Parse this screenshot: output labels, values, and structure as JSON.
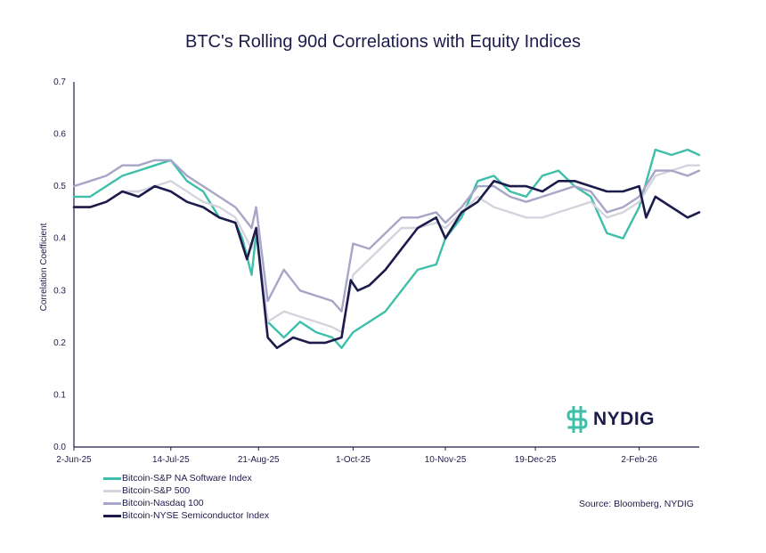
{
  "colors": {
    "software": "#3dbfaa",
    "sp500": "#d4d4df",
    "nasdaq": "#a7a5c8",
    "semis": "#1d1b4c",
    "axis": "#1d1b4c",
    "logo_accent": "#3dbfaa"
  },
  "logo": {
    "text": "NYDIG",
    "icon": "dollar-sign-logo-icon"
  },
  "source": "Source: Bloomberg, NYDIG",
  "chart_data": {
    "type": "line",
    "title": "BTC's Rolling 90d Correlations with Equity Indices",
    "ylabel": "Correlation Coefficient",
    "xlabel": "",
    "ylim": [
      0,
      0.7
    ],
    "yticks": [
      "0.0",
      "0.1",
      "0.2",
      "0.3",
      "0.4",
      "0.5",
      "0.6",
      "0.7"
    ],
    "x_range": [
      "2025-06-02",
      "2026-02-28"
    ],
    "xtick_labels": [
      "2-Jun-25",
      "14-Jul-25",
      "21-Aug-25",
      "1-Oct-25",
      "10-Nov-25",
      "19-Dec-25",
      "2-Feb-26"
    ],
    "xtick_dates": [
      "2025-06-02",
      "2025-07-14",
      "2025-08-21",
      "2025-10-01",
      "2025-11-10",
      "2025-12-19",
      "2026-02-02"
    ],
    "grid": false,
    "legend_position": "bottom-left",
    "series": [
      {
        "name": "Bitcoin-S&P NA Software Index",
        "color_key": "software",
        "points": [
          [
            "2025-06-02",
            0.48
          ],
          [
            "2025-06-09",
            0.48
          ],
          [
            "2025-06-16",
            0.5
          ],
          [
            "2025-06-23",
            0.52
          ],
          [
            "2025-06-30",
            0.53
          ],
          [
            "2025-07-07",
            0.54
          ],
          [
            "2025-07-14",
            0.55
          ],
          [
            "2025-07-21",
            0.51
          ],
          [
            "2025-07-28",
            0.49
          ],
          [
            "2025-08-04",
            0.44
          ],
          [
            "2025-08-11",
            0.43
          ],
          [
            "2025-08-14",
            0.4
          ],
          [
            "2025-08-18",
            0.33
          ],
          [
            "2025-08-20",
            0.41
          ],
          [
            "2025-08-25",
            0.24
          ],
          [
            "2025-09-01",
            0.21
          ],
          [
            "2025-09-08",
            0.24
          ],
          [
            "2025-09-15",
            0.22
          ],
          [
            "2025-09-22",
            0.21
          ],
          [
            "2025-09-26",
            0.19
          ],
          [
            "2025-10-01",
            0.22
          ],
          [
            "2025-10-08",
            0.24
          ],
          [
            "2025-10-15",
            0.26
          ],
          [
            "2025-10-22",
            0.3
          ],
          [
            "2025-10-29",
            0.34
          ],
          [
            "2025-11-06",
            0.35
          ],
          [
            "2025-11-10",
            0.4
          ],
          [
            "2025-11-17",
            0.44
          ],
          [
            "2025-11-24",
            0.51
          ],
          [
            "2025-12-01",
            0.52
          ],
          [
            "2025-12-08",
            0.49
          ],
          [
            "2025-12-15",
            0.48
          ],
          [
            "2025-12-22",
            0.52
          ],
          [
            "2025-12-29",
            0.53
          ],
          [
            "2026-01-05",
            0.5
          ],
          [
            "2026-01-12",
            0.48
          ],
          [
            "2026-01-19",
            0.41
          ],
          [
            "2026-01-26",
            0.4
          ],
          [
            "2026-02-02",
            0.46
          ],
          [
            "2026-02-09",
            0.57
          ],
          [
            "2026-02-16",
            0.56
          ],
          [
            "2026-02-23",
            0.57
          ],
          [
            "2026-02-28",
            0.56
          ]
        ]
      },
      {
        "name": "Bitcoin-S&P 500",
        "color_key": "sp500",
        "points": [
          [
            "2025-06-02",
            0.46
          ],
          [
            "2025-06-09",
            0.46
          ],
          [
            "2025-06-16",
            0.47
          ],
          [
            "2025-06-23",
            0.49
          ],
          [
            "2025-06-30",
            0.49
          ],
          [
            "2025-07-07",
            0.5
          ],
          [
            "2025-07-14",
            0.51
          ],
          [
            "2025-07-21",
            0.49
          ],
          [
            "2025-07-28",
            0.47
          ],
          [
            "2025-08-04",
            0.46
          ],
          [
            "2025-08-11",
            0.44
          ],
          [
            "2025-08-18",
            0.38
          ],
          [
            "2025-08-20",
            0.42
          ],
          [
            "2025-08-25",
            0.24
          ],
          [
            "2025-09-01",
            0.26
          ],
          [
            "2025-09-08",
            0.25
          ],
          [
            "2025-09-15",
            0.24
          ],
          [
            "2025-09-22",
            0.23
          ],
          [
            "2025-09-26",
            0.22
          ],
          [
            "2025-10-01",
            0.33
          ],
          [
            "2025-10-08",
            0.36
          ],
          [
            "2025-10-15",
            0.39
          ],
          [
            "2025-10-22",
            0.42
          ],
          [
            "2025-10-29",
            0.42
          ],
          [
            "2025-11-06",
            0.43
          ],
          [
            "2025-11-10",
            0.42
          ],
          [
            "2025-11-17",
            0.45
          ],
          [
            "2025-11-24",
            0.48
          ],
          [
            "2025-12-01",
            0.46
          ],
          [
            "2025-12-08",
            0.45
          ],
          [
            "2025-12-15",
            0.44
          ],
          [
            "2025-12-22",
            0.44
          ],
          [
            "2025-12-29",
            0.45
          ],
          [
            "2026-01-05",
            0.46
          ],
          [
            "2026-01-12",
            0.47
          ],
          [
            "2026-01-19",
            0.44
          ],
          [
            "2026-01-26",
            0.45
          ],
          [
            "2026-02-02",
            0.47
          ],
          [
            "2026-02-09",
            0.52
          ],
          [
            "2026-02-16",
            0.53
          ],
          [
            "2026-02-23",
            0.54
          ],
          [
            "2026-02-28",
            0.54
          ]
        ]
      },
      {
        "name": "Bitcoin-Nasdaq 100",
        "color_key": "nasdaq",
        "points": [
          [
            "2025-06-02",
            0.5
          ],
          [
            "2025-06-09",
            0.51
          ],
          [
            "2025-06-16",
            0.52
          ],
          [
            "2025-06-23",
            0.54
          ],
          [
            "2025-06-30",
            0.54
          ],
          [
            "2025-07-07",
            0.55
          ],
          [
            "2025-07-14",
            0.55
          ],
          [
            "2025-07-21",
            0.52
          ],
          [
            "2025-07-28",
            0.5
          ],
          [
            "2025-08-04",
            0.48
          ],
          [
            "2025-08-11",
            0.46
          ],
          [
            "2025-08-18",
            0.42
          ],
          [
            "2025-08-20",
            0.46
          ],
          [
            "2025-08-25",
            0.28
          ],
          [
            "2025-09-01",
            0.34
          ],
          [
            "2025-09-08",
            0.3
          ],
          [
            "2025-09-15",
            0.29
          ],
          [
            "2025-09-22",
            0.28
          ],
          [
            "2025-09-26",
            0.26
          ],
          [
            "2025-10-01",
            0.39
          ],
          [
            "2025-10-08",
            0.38
          ],
          [
            "2025-10-15",
            0.41
          ],
          [
            "2025-10-22",
            0.44
          ],
          [
            "2025-10-29",
            0.44
          ],
          [
            "2025-11-06",
            0.45
          ],
          [
            "2025-11-10",
            0.43
          ],
          [
            "2025-11-17",
            0.46
          ],
          [
            "2025-11-24",
            0.5
          ],
          [
            "2025-12-01",
            0.5
          ],
          [
            "2025-12-08",
            0.48
          ],
          [
            "2025-12-15",
            0.47
          ],
          [
            "2025-12-22",
            0.48
          ],
          [
            "2025-12-29",
            0.49
          ],
          [
            "2026-01-05",
            0.5
          ],
          [
            "2026-01-12",
            0.49
          ],
          [
            "2026-01-19",
            0.45
          ],
          [
            "2026-01-26",
            0.46
          ],
          [
            "2026-02-02",
            0.48
          ],
          [
            "2026-02-09",
            0.53
          ],
          [
            "2026-02-16",
            0.53
          ],
          [
            "2026-02-23",
            0.52
          ],
          [
            "2026-02-28",
            0.53
          ]
        ]
      },
      {
        "name": "Bitcoin-NYSE Semiconductor Index",
        "color_key": "semis",
        "points": [
          [
            "2025-06-02",
            0.46
          ],
          [
            "2025-06-09",
            0.46
          ],
          [
            "2025-06-16",
            0.47
          ],
          [
            "2025-06-23",
            0.49
          ],
          [
            "2025-06-30",
            0.48
          ],
          [
            "2025-07-07",
            0.5
          ],
          [
            "2025-07-14",
            0.49
          ],
          [
            "2025-07-21",
            0.47
          ],
          [
            "2025-07-28",
            0.46
          ],
          [
            "2025-08-04",
            0.44
          ],
          [
            "2025-08-11",
            0.43
          ],
          [
            "2025-08-16",
            0.36
          ],
          [
            "2025-08-20",
            0.42
          ],
          [
            "2025-08-25",
            0.21
          ],
          [
            "2025-08-29",
            0.19
          ],
          [
            "2025-09-05",
            0.21
          ],
          [
            "2025-09-12",
            0.2
          ],
          [
            "2025-09-19",
            0.2
          ],
          [
            "2025-09-26",
            0.21
          ],
          [
            "2025-09-30",
            0.32
          ],
          [
            "2025-10-03",
            0.3
          ],
          [
            "2025-10-08",
            0.31
          ],
          [
            "2025-10-15",
            0.34
          ],
          [
            "2025-10-22",
            0.38
          ],
          [
            "2025-10-29",
            0.42
          ],
          [
            "2025-11-06",
            0.44
          ],
          [
            "2025-11-10",
            0.4
          ],
          [
            "2025-11-17",
            0.45
          ],
          [
            "2025-11-24",
            0.47
          ],
          [
            "2025-12-01",
            0.51
          ],
          [
            "2025-12-08",
            0.5
          ],
          [
            "2025-12-15",
            0.5
          ],
          [
            "2025-12-22",
            0.49
          ],
          [
            "2025-12-29",
            0.51
          ],
          [
            "2026-01-05",
            0.51
          ],
          [
            "2026-01-12",
            0.5
          ],
          [
            "2026-01-19",
            0.49
          ],
          [
            "2026-01-26",
            0.49
          ],
          [
            "2026-02-02",
            0.5
          ],
          [
            "2026-02-05",
            0.44
          ],
          [
            "2026-02-09",
            0.48
          ],
          [
            "2026-02-16",
            0.46
          ],
          [
            "2026-02-23",
            0.44
          ],
          [
            "2026-02-28",
            0.45
          ]
        ]
      }
    ]
  }
}
